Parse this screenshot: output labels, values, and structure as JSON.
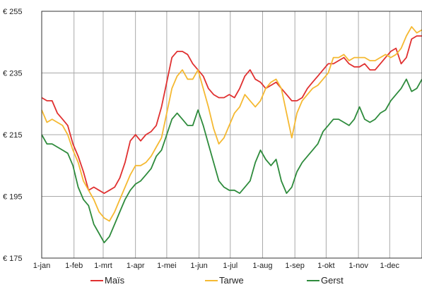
{
  "chart_data": {
    "type": "line",
    "grid": true,
    "legend": "bottom",
    "ylim": [
      175,
      255
    ],
    "y_ticks": [
      175,
      195,
      215,
      235,
      255
    ],
    "y_tick_labels": [
      "€ 175",
      "€ 195",
      "€ 215",
      "€ 235",
      "€ 255"
    ],
    "x_range": [
      0,
      365
    ],
    "x_ticks": [
      {
        "label": "1-jan",
        "day": 0
      },
      {
        "label": "1-feb",
        "day": 31
      },
      {
        "label": "1-mrt",
        "day": 59
      },
      {
        "label": "1-apr",
        "day": 90
      },
      {
        "label": "1-mei",
        "day": 120
      },
      {
        "label": "1-jun",
        "day": 151
      },
      {
        "label": "1-jul",
        "day": 181
      },
      {
        "label": "1-aug",
        "day": 212
      },
      {
        "label": "1-sep",
        "day": 243
      },
      {
        "label": "1-okt",
        "day": 273
      },
      {
        "label": "1-nov",
        "day": 304
      },
      {
        "label": "1-dec",
        "day": 334
      }
    ],
    "series": [
      {
        "name": "Maïs",
        "color": "#e03030",
        "points": [
          [
            0,
            227
          ],
          [
            5,
            226
          ],
          [
            10,
            226
          ],
          [
            15,
            222
          ],
          [
            20,
            220
          ],
          [
            25,
            218
          ],
          [
            30,
            212
          ],
          [
            35,
            208
          ],
          [
            40,
            203
          ],
          [
            45,
            197
          ],
          [
            50,
            198
          ],
          [
            55,
            197
          ],
          [
            60,
            196
          ],
          [
            65,
            197
          ],
          [
            70,
            198
          ],
          [
            75,
            201
          ],
          [
            80,
            206
          ],
          [
            85,
            213
          ],
          [
            90,
            215
          ],
          [
            95,
            213
          ],
          [
            100,
            215
          ],
          [
            105,
            216
          ],
          [
            110,
            218
          ],
          [
            115,
            224
          ],
          [
            120,
            232
          ],
          [
            125,
            240
          ],
          [
            130,
            242
          ],
          [
            135,
            242
          ],
          [
            140,
            241
          ],
          [
            145,
            238
          ],
          [
            150,
            236
          ],
          [
            155,
            234
          ],
          [
            160,
            230
          ],
          [
            165,
            228
          ],
          [
            170,
            227
          ],
          [
            175,
            227
          ],
          [
            180,
            228
          ],
          [
            185,
            227
          ],
          [
            190,
            230
          ],
          [
            195,
            234
          ],
          [
            200,
            236
          ],
          [
            205,
            233
          ],
          [
            210,
            232
          ],
          [
            215,
            230
          ],
          [
            220,
            231
          ],
          [
            225,
            232
          ],
          [
            230,
            230
          ],
          [
            235,
            228
          ],
          [
            240,
            226
          ],
          [
            245,
            226
          ],
          [
            250,
            227
          ],
          [
            255,
            230
          ],
          [
            260,
            232
          ],
          [
            265,
            234
          ],
          [
            270,
            236
          ],
          [
            275,
            238
          ],
          [
            280,
            238
          ],
          [
            285,
            239
          ],
          [
            290,
            240
          ],
          [
            295,
            238
          ],
          [
            300,
            237
          ],
          [
            305,
            237
          ],
          [
            310,
            238
          ],
          [
            315,
            236
          ],
          [
            320,
            236
          ],
          [
            325,
            238
          ],
          [
            330,
            240
          ],
          [
            335,
            242
          ],
          [
            340,
            243
          ],
          [
            345,
            238
          ],
          [
            350,
            240
          ],
          [
            355,
            246
          ],
          [
            360,
            247
          ],
          [
            365,
            247
          ]
        ]
      },
      {
        "name": "Tarwe",
        "color": "#f5b932",
        "points": [
          [
            0,
            223
          ],
          [
            5,
            219
          ],
          [
            10,
            220
          ],
          [
            15,
            219
          ],
          [
            20,
            218
          ],
          [
            25,
            215
          ],
          [
            30,
            210
          ],
          [
            35,
            206
          ],
          [
            40,
            200
          ],
          [
            45,
            197
          ],
          [
            50,
            194
          ],
          [
            55,
            190
          ],
          [
            60,
            188
          ],
          [
            65,
            187
          ],
          [
            70,
            190
          ],
          [
            75,
            194
          ],
          [
            80,
            198
          ],
          [
            85,
            202
          ],
          [
            90,
            205
          ],
          [
            95,
            205
          ],
          [
            100,
            206
          ],
          [
            105,
            208
          ],
          [
            110,
            211
          ],
          [
            115,
            214
          ],
          [
            120,
            222
          ],
          [
            125,
            230
          ],
          [
            130,
            234
          ],
          [
            135,
            236
          ],
          [
            140,
            233
          ],
          [
            145,
            233
          ],
          [
            150,
            236
          ],
          [
            155,
            230
          ],
          [
            160,
            224
          ],
          [
            165,
            217
          ],
          [
            170,
            212
          ],
          [
            175,
            214
          ],
          [
            180,
            218
          ],
          [
            185,
            222
          ],
          [
            190,
            224
          ],
          [
            195,
            228
          ],
          [
            200,
            226
          ],
          [
            205,
            224
          ],
          [
            210,
            226
          ],
          [
            215,
            230
          ],
          [
            220,
            232
          ],
          [
            225,
            233
          ],
          [
            230,
            230
          ],
          [
            235,
            222
          ],
          [
            240,
            214
          ],
          [
            245,
            222
          ],
          [
            250,
            226
          ],
          [
            255,
            228
          ],
          [
            260,
            230
          ],
          [
            265,
            231
          ],
          [
            270,
            233
          ],
          [
            275,
            235
          ],
          [
            280,
            240
          ],
          [
            285,
            240
          ],
          [
            290,
            241
          ],
          [
            295,
            239
          ],
          [
            300,
            240
          ],
          [
            305,
            240
          ],
          [
            310,
            240
          ],
          [
            315,
            239
          ],
          [
            320,
            239
          ],
          [
            325,
            240
          ],
          [
            330,
            241
          ],
          [
            335,
            240
          ],
          [
            340,
            241
          ],
          [
            345,
            243
          ],
          [
            350,
            247
          ],
          [
            355,
            250
          ],
          [
            360,
            248
          ],
          [
            365,
            249
          ]
        ]
      },
      {
        "name": "Gerst",
        "color": "#2e8b3c",
        "points": [
          [
            0,
            215
          ],
          [
            5,
            212
          ],
          [
            10,
            212
          ],
          [
            15,
            211
          ],
          [
            20,
            210
          ],
          [
            25,
            209
          ],
          [
            30,
            205
          ],
          [
            35,
            198
          ],
          [
            40,
            194
          ],
          [
            45,
            192
          ],
          [
            50,
            186
          ],
          [
            55,
            183
          ],
          [
            60,
            180
          ],
          [
            65,
            182
          ],
          [
            70,
            186
          ],
          [
            75,
            190
          ],
          [
            80,
            194
          ],
          [
            85,
            197
          ],
          [
            90,
            199
          ],
          [
            95,
            200
          ],
          [
            100,
            202
          ],
          [
            105,
            204
          ],
          [
            110,
            208
          ],
          [
            115,
            210
          ],
          [
            120,
            215
          ],
          [
            125,
            220
          ],
          [
            130,
            222
          ],
          [
            135,
            220
          ],
          [
            140,
            218
          ],
          [
            145,
            218
          ],
          [
            150,
            223
          ],
          [
            155,
            218
          ],
          [
            160,
            212
          ],
          [
            165,
            206
          ],
          [
            170,
            200
          ],
          [
            175,
            198
          ],
          [
            180,
            197
          ],
          [
            185,
            197
          ],
          [
            190,
            196
          ],
          [
            195,
            198
          ],
          [
            200,
            200
          ],
          [
            205,
            206
          ],
          [
            210,
            210
          ],
          [
            215,
            207
          ],
          [
            220,
            205
          ],
          [
            225,
            207
          ],
          [
            230,
            200
          ],
          [
            235,
            196
          ],
          [
            240,
            198
          ],
          [
            245,
            203
          ],
          [
            250,
            206
          ],
          [
            255,
            208
          ],
          [
            260,
            210
          ],
          [
            265,
            212
          ],
          [
            270,
            216
          ],
          [
            275,
            218
          ],
          [
            280,
            220
          ],
          [
            285,
            220
          ],
          [
            290,
            219
          ],
          [
            295,
            218
          ],
          [
            300,
            220
          ],
          [
            305,
            224
          ],
          [
            310,
            220
          ],
          [
            315,
            219
          ],
          [
            320,
            220
          ],
          [
            325,
            222
          ],
          [
            330,
            223
          ],
          [
            335,
            226
          ],
          [
            340,
            228
          ],
          [
            345,
            230
          ],
          [
            350,
            233
          ],
          [
            355,
            229
          ],
          [
            360,
            230
          ],
          [
            365,
            233
          ]
        ]
      }
    ]
  }
}
